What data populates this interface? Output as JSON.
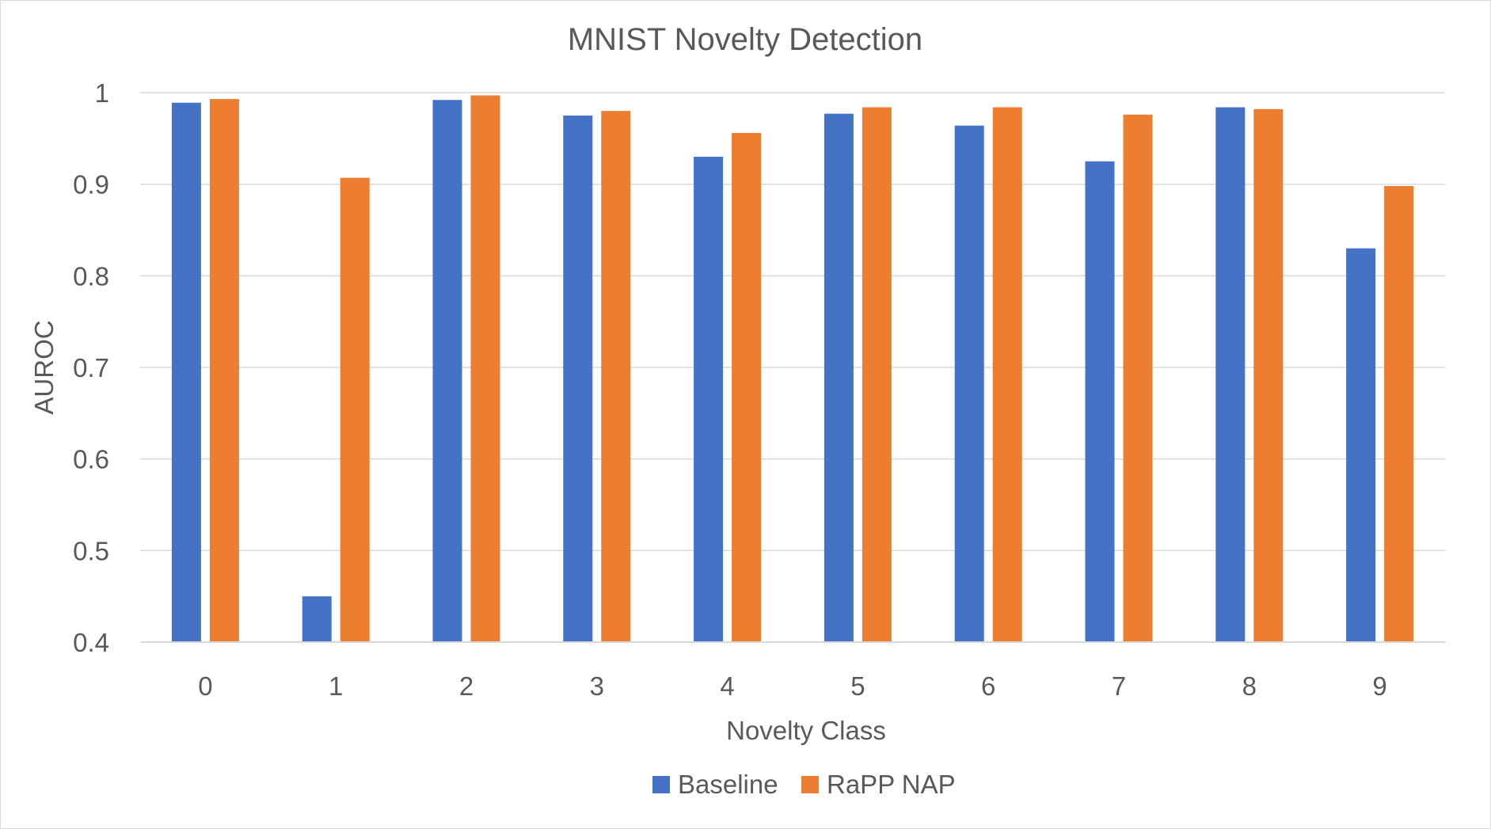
{
  "chart_data": {
    "type": "bar",
    "title": "MNIST Novelty Detection",
    "xlabel": "Novelty Class",
    "ylabel": "AUROC",
    "categories": [
      "0",
      "1",
      "2",
      "3",
      "4",
      "5",
      "6",
      "7",
      "8",
      "9"
    ],
    "ylim": [
      0.4,
      1.0
    ],
    "yticks": [
      "0.4",
      "0.5",
      "0.6",
      "0.7",
      "0.8",
      "0.9",
      "1"
    ],
    "grid": true,
    "legend_position": "bottom",
    "series": [
      {
        "name": "Baseline",
        "color": "#4472c4",
        "values": [
          0.989,
          0.45,
          0.992,
          0.975,
          0.93,
          0.977,
          0.964,
          0.925,
          0.984,
          0.83
        ]
      },
      {
        "name": "RaPP NAP",
        "color": "#ed7d31",
        "values": [
          0.993,
          0.907,
          0.997,
          0.98,
          0.956,
          0.984,
          0.984,
          0.976,
          0.982,
          0.898
        ]
      }
    ]
  }
}
